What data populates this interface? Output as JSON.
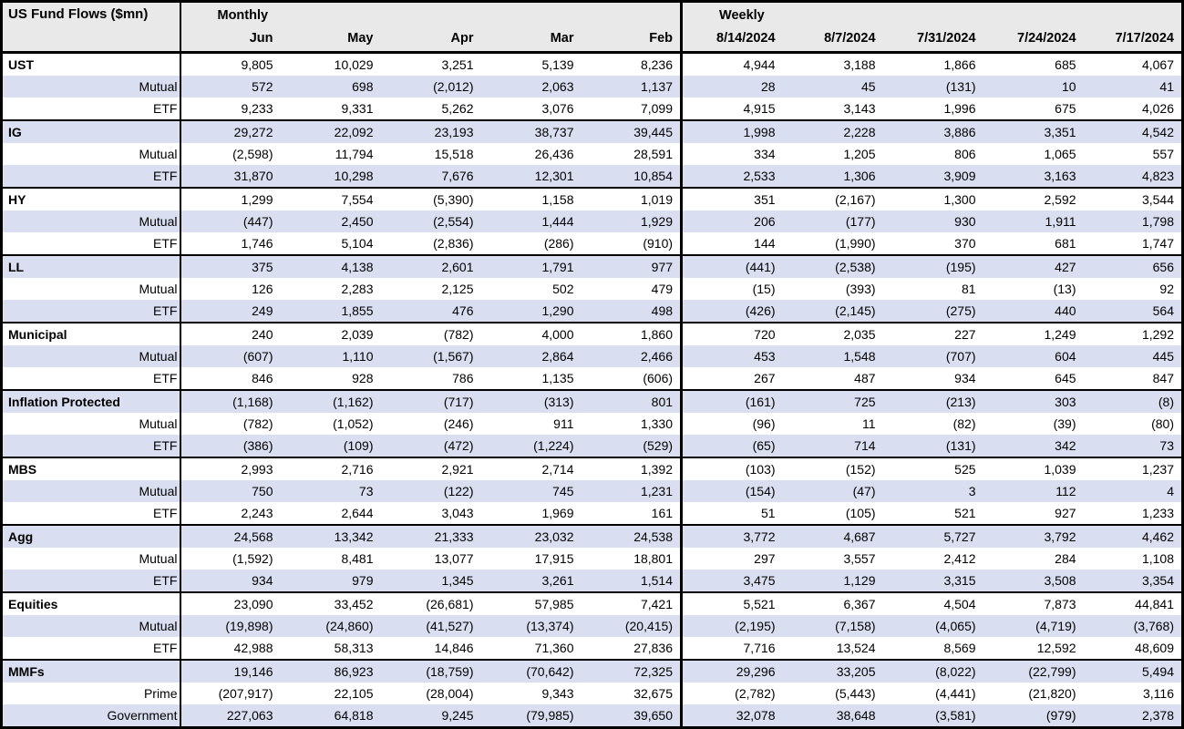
{
  "title": "US Fund Flows ($mn)",
  "colors": {
    "header_bg": "#e9e9e9",
    "stripe_bg": "#d9def0",
    "border": "#000000",
    "text": "#000000"
  },
  "sections": {
    "monthly": {
      "label": "Monthly",
      "columns": [
        "Jun",
        "May",
        "Apr",
        "Mar",
        "Feb"
      ]
    },
    "weekly": {
      "label": "Weekly",
      "columns": [
        "8/14/2024",
        "8/7/2024",
        "7/31/2024",
        "7/24/2024",
        "7/17/2024"
      ]
    }
  },
  "rows": [
    {
      "label": "UST",
      "type": "group",
      "monthly": [
        "9,805",
        "10,029",
        "3,251",
        "5,139",
        "8,236"
      ],
      "weekly": [
        "4,944",
        "3,188",
        "1,866",
        "685",
        "4,067"
      ]
    },
    {
      "label": "Mutual",
      "type": "sub",
      "monthly": [
        "572",
        "698",
        "(2,012)",
        "2,063",
        "1,137"
      ],
      "weekly": [
        "28",
        "45",
        "(131)",
        "10",
        "41"
      ]
    },
    {
      "label": "ETF",
      "type": "sub",
      "monthly": [
        "9,233",
        "9,331",
        "5,262",
        "3,076",
        "7,099"
      ],
      "weekly": [
        "4,915",
        "3,143",
        "1,996",
        "675",
        "4,026"
      ]
    },
    {
      "label": "IG",
      "type": "group",
      "monthly": [
        "29,272",
        "22,092",
        "23,193",
        "38,737",
        "39,445"
      ],
      "weekly": [
        "1,998",
        "2,228",
        "3,886",
        "3,351",
        "4,542"
      ]
    },
    {
      "label": "Mutual",
      "type": "sub",
      "monthly": [
        "(2,598)",
        "11,794",
        "15,518",
        "26,436",
        "28,591"
      ],
      "weekly": [
        "334",
        "1,205",
        "806",
        "1,065",
        "557"
      ]
    },
    {
      "label": "ETF",
      "type": "sub",
      "monthly": [
        "31,870",
        "10,298",
        "7,676",
        "12,301",
        "10,854"
      ],
      "weekly": [
        "2,533",
        "1,306",
        "3,909",
        "3,163",
        "4,823"
      ]
    },
    {
      "label": "HY",
      "type": "group",
      "monthly": [
        "1,299",
        "7,554",
        "(5,390)",
        "1,158",
        "1,019"
      ],
      "weekly": [
        "351",
        "(2,167)",
        "1,300",
        "2,592",
        "3,544"
      ]
    },
    {
      "label": "Mutual",
      "type": "sub",
      "monthly": [
        "(447)",
        "2,450",
        "(2,554)",
        "1,444",
        "1,929"
      ],
      "weekly": [
        "206",
        "(177)",
        "930",
        "1,911",
        "1,798"
      ]
    },
    {
      "label": "ETF",
      "type": "sub",
      "monthly": [
        "1,746",
        "5,104",
        "(2,836)",
        "(286)",
        "(910)"
      ],
      "weekly": [
        "144",
        "(1,990)",
        "370",
        "681",
        "1,747"
      ]
    },
    {
      "label": "LL",
      "type": "group",
      "monthly": [
        "375",
        "4,138",
        "2,601",
        "1,791",
        "977"
      ],
      "weekly": [
        "(441)",
        "(2,538)",
        "(195)",
        "427",
        "656"
      ]
    },
    {
      "label": "Mutual",
      "type": "sub",
      "monthly": [
        "126",
        "2,283",
        "2,125",
        "502",
        "479"
      ],
      "weekly": [
        "(15)",
        "(393)",
        "81",
        "(13)",
        "92"
      ]
    },
    {
      "label": "ETF",
      "type": "sub",
      "monthly": [
        "249",
        "1,855",
        "476",
        "1,290",
        "498"
      ],
      "weekly": [
        "(426)",
        "(2,145)",
        "(275)",
        "440",
        "564"
      ]
    },
    {
      "label": "Municipal",
      "type": "group",
      "monthly": [
        "240",
        "2,039",
        "(782)",
        "4,000",
        "1,860"
      ],
      "weekly": [
        "720",
        "2,035",
        "227",
        "1,249",
        "1,292"
      ]
    },
    {
      "label": "Mutual",
      "type": "sub",
      "monthly": [
        "(607)",
        "1,110",
        "(1,567)",
        "2,864",
        "2,466"
      ],
      "weekly": [
        "453",
        "1,548",
        "(707)",
        "604",
        "445"
      ]
    },
    {
      "label": "ETF",
      "type": "sub",
      "monthly": [
        "846",
        "928",
        "786",
        "1,135",
        "(606)"
      ],
      "weekly": [
        "267",
        "487",
        "934",
        "645",
        "847"
      ]
    },
    {
      "label": "Inflation Protected",
      "type": "group",
      "monthly": [
        "(1,168)",
        "(1,162)",
        "(717)",
        "(313)",
        "801"
      ],
      "weekly": [
        "(161)",
        "725",
        "(213)",
        "303",
        "(8)"
      ]
    },
    {
      "label": "Mutual",
      "type": "sub",
      "monthly": [
        "(782)",
        "(1,052)",
        "(246)",
        "911",
        "1,330"
      ],
      "weekly": [
        "(96)",
        "11",
        "(82)",
        "(39)",
        "(80)"
      ]
    },
    {
      "label": "ETF",
      "type": "sub",
      "monthly": [
        "(386)",
        "(109)",
        "(472)",
        "(1,224)",
        "(529)"
      ],
      "weekly": [
        "(65)",
        "714",
        "(131)",
        "342",
        "73"
      ]
    },
    {
      "label": "MBS",
      "type": "group",
      "monthly": [
        "2,993",
        "2,716",
        "2,921",
        "2,714",
        "1,392"
      ],
      "weekly": [
        "(103)",
        "(152)",
        "525",
        "1,039",
        "1,237"
      ]
    },
    {
      "label": "Mutual",
      "type": "sub",
      "monthly": [
        "750",
        "73",
        "(122)",
        "745",
        "1,231"
      ],
      "weekly": [
        "(154)",
        "(47)",
        "3",
        "112",
        "4"
      ]
    },
    {
      "label": "ETF",
      "type": "sub",
      "monthly": [
        "2,243",
        "2,644",
        "3,043",
        "1,969",
        "161"
      ],
      "weekly": [
        "51",
        "(105)",
        "521",
        "927",
        "1,233"
      ]
    },
    {
      "label": "Agg",
      "type": "group",
      "monthly": [
        "24,568",
        "13,342",
        "21,333",
        "23,032",
        "24,538"
      ],
      "weekly": [
        "3,772",
        "4,687",
        "5,727",
        "3,792",
        "4,462"
      ]
    },
    {
      "label": "Mutual",
      "type": "sub",
      "monthly": [
        "(1,592)",
        "8,481",
        "13,077",
        "17,915",
        "18,801"
      ],
      "weekly": [
        "297",
        "3,557",
        "2,412",
        "284",
        "1,108"
      ]
    },
    {
      "label": "ETF",
      "type": "sub",
      "monthly": [
        "934",
        "979",
        "1,345",
        "3,261",
        "1,514"
      ],
      "weekly": [
        "3,475",
        "1,129",
        "3,315",
        "3,508",
        "3,354"
      ]
    },
    {
      "label": "Equities",
      "type": "group",
      "monthly": [
        "23,090",
        "33,452",
        "(26,681)",
        "57,985",
        "7,421"
      ],
      "weekly": [
        "5,521",
        "6,367",
        "4,504",
        "7,873",
        "44,841"
      ]
    },
    {
      "label": "Mutual",
      "type": "sub",
      "monthly": [
        "(19,898)",
        "(24,860)",
        "(41,527)",
        "(13,374)",
        "(20,415)"
      ],
      "weekly": [
        "(2,195)",
        "(7,158)",
        "(4,065)",
        "(4,719)",
        "(3,768)"
      ]
    },
    {
      "label": "ETF",
      "type": "sub",
      "monthly": [
        "42,988",
        "58,313",
        "14,846",
        "71,360",
        "27,836"
      ],
      "weekly": [
        "7,716",
        "13,524",
        "8,569",
        "12,592",
        "48,609"
      ]
    },
    {
      "label": "MMFs",
      "type": "group",
      "monthly": [
        "19,146",
        "86,923",
        "(18,759)",
        "(70,642)",
        "72,325"
      ],
      "weekly": [
        "29,296",
        "33,205",
        "(8,022)",
        "(22,799)",
        "5,494"
      ]
    },
    {
      "label": "Prime",
      "type": "sub",
      "monthly": [
        "(207,917)",
        "22,105",
        "(28,004)",
        "9,343",
        "32,675"
      ],
      "weekly": [
        "(2,782)",
        "(5,443)",
        "(4,441)",
        "(21,820)",
        "3,116"
      ]
    },
    {
      "label": "Government",
      "type": "sub",
      "monthly": [
        "227,063",
        "64,818",
        "9,245",
        "(79,985)",
        "39,650"
      ],
      "weekly": [
        "32,078",
        "38,648",
        "(3,581)",
        "(979)",
        "2,378"
      ]
    }
  ]
}
